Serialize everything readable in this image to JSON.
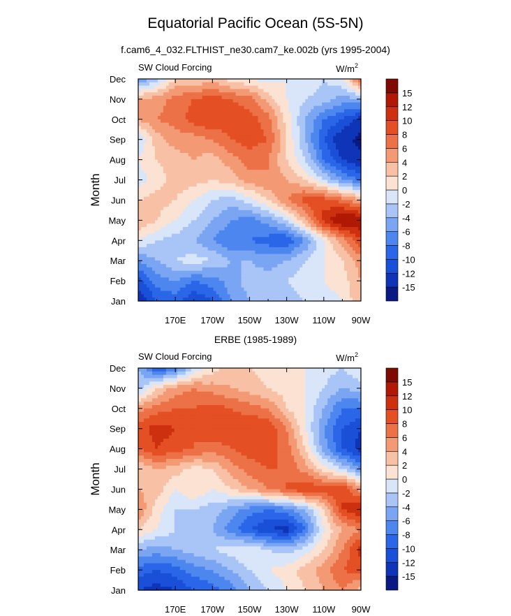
{
  "figure": {
    "title": "Equatorial Pacific Ocean (5S-5N)",
    "subtitle": "f.cam6_4_032.FLTHIST_ne30.cam7_ke.002b (yrs 1995-2004)",
    "panel2_title": "ERBE (1985-1989)"
  },
  "chart_data": [
    {
      "type": "heatmap",
      "title": "SW Cloud Forcing",
      "units_base": "W/m",
      "units_exp": "2",
      "ylabel": "Month",
      "xlabel": "",
      "xlim": [
        150,
        270
      ],
      "x_ticks": [
        170,
        190,
        210,
        230,
        250,
        270
      ],
      "x_tick_labels": [
        "170E",
        "170W",
        "150W",
        "130W",
        "110W",
        "90W"
      ],
      "months": [
        "Jan",
        "Feb",
        "Mar",
        "Apr",
        "May",
        "Jun",
        "Jul",
        "Aug",
        "Sep",
        "Oct",
        "Nov",
        "Dec"
      ],
      "colorbar_levels": [
        -15,
        -12,
        -10,
        -8,
        -6,
        -4,
        -2,
        0,
        2,
        4,
        6,
        8,
        10,
        12,
        15
      ],
      "colorbar_colors": [
        "#0b1a82",
        "#0f34b8",
        "#1a4fd8",
        "#2b66e8",
        "#4d86ef",
        "#7aa5f3",
        "#a9c5f7",
        "#d9e6fa",
        "#fbe2d2",
        "#f8c0a4",
        "#f39a74",
        "#ec7146",
        "#e44f24",
        "#cc300f",
        "#b11905",
        "#7e0a00"
      ],
      "lons": [
        150,
        160,
        170,
        180,
        190,
        200,
        210,
        220,
        230,
        240,
        250,
        260,
        270
      ],
      "values": [
        [
          -14,
          -10,
          -9,
          -12,
          -10,
          -6,
          -4,
          -4,
          -3,
          -2,
          -1,
          0,
          4
        ],
        [
          -11,
          -7,
          -6,
          -8,
          -7,
          -5,
          -3,
          -3,
          -2,
          -1,
          0,
          1,
          4
        ],
        [
          -6,
          -4,
          -2,
          -1,
          -2,
          -4,
          -4,
          -5,
          -4,
          -2,
          0,
          2,
          5
        ],
        [
          0,
          -2,
          -3,
          -4,
          -6,
          -8,
          -8,
          -9,
          -10,
          -6,
          0,
          5,
          10
        ],
        [
          4,
          2,
          0,
          -2,
          -4,
          -6,
          -7,
          -5,
          -2,
          4,
          11,
          15,
          14
        ],
        [
          2,
          3,
          2,
          0,
          -2,
          -3,
          -1,
          2,
          6,
          9,
          9,
          7,
          4
        ],
        [
          -1,
          1,
          3,
          3,
          2,
          3,
          5,
          6,
          4,
          2,
          -2,
          -6,
          -8
        ],
        [
          0,
          2,
          3,
          4,
          3,
          5,
          7,
          6,
          2,
          -2,
          -8,
          -12,
          -14
        ],
        [
          -2,
          3,
          5,
          5,
          6,
          8,
          9,
          8,
          2,
          -4,
          -10,
          -14,
          -16
        ],
        [
          4,
          6,
          7,
          9,
          10,
          9,
          9,
          7,
          1,
          -4,
          -8,
          -10,
          -13
        ],
        [
          4,
          5,
          7,
          8,
          9,
          8,
          7,
          3,
          0,
          -2,
          -3,
          -5,
          -4
        ],
        [
          -6,
          -3,
          2,
          2,
          3,
          1,
          0,
          -1,
          0,
          0,
          -2,
          0,
          8
        ]
      ]
    },
    {
      "type": "heatmap",
      "title": "SW Cloud Forcing",
      "units_base": "W/m",
      "units_exp": "2",
      "ylabel": "Month",
      "xlabel": "",
      "xlim": [
        150,
        270
      ],
      "x_ticks": [
        170,
        190,
        210,
        230,
        250,
        270
      ],
      "x_tick_labels": [
        "170E",
        "170W",
        "150W",
        "130W",
        "110W",
        "90W"
      ],
      "months": [
        "Jan",
        "Feb",
        "Mar",
        "Apr",
        "May",
        "Jun",
        "Jul",
        "Aug",
        "Sep",
        "Oct",
        "Nov",
        "Dec"
      ],
      "colorbar_levels": [
        -15,
        -12,
        -10,
        -8,
        -6,
        -4,
        -2,
        0,
        2,
        4,
        6,
        8,
        10,
        12,
        15
      ],
      "colorbar_colors": [
        "#0b1a82",
        "#0f34b8",
        "#1a4fd8",
        "#2b66e8",
        "#4d86ef",
        "#7aa5f3",
        "#a9c5f7",
        "#d9e6fa",
        "#fbe2d2",
        "#f8c0a4",
        "#f39a74",
        "#ec7146",
        "#e44f24",
        "#cc300f",
        "#b11905",
        "#7e0a00"
      ],
      "lons": [
        150,
        160,
        170,
        180,
        190,
        200,
        210,
        220,
        230,
        240,
        250,
        260,
        270
      ],
      "values": [
        [
          -12,
          -13,
          -12,
          -10,
          -9,
          -7,
          -4,
          -2,
          0,
          2,
          4,
          6,
          3
        ],
        [
          -9,
          -10,
          -9,
          -7,
          -6,
          -4,
          -2,
          0,
          1,
          3,
          5,
          8,
          9
        ],
        [
          -4,
          -5,
          -4,
          -3,
          -2,
          -1,
          0,
          -2,
          -3,
          -1,
          2,
          6,
          11
        ],
        [
          2,
          0,
          -2,
          -3,
          -4,
          -7,
          -10,
          -12,
          -13,
          -8,
          0,
          4,
          6
        ],
        [
          6,
          1,
          -2,
          -2,
          -3,
          -5,
          -7,
          -8,
          -7,
          -4,
          2,
          10,
          12
        ],
        [
          4,
          3,
          0,
          2,
          0,
          2,
          4,
          6,
          8,
          10,
          9,
          10,
          5
        ],
        [
          2,
          4,
          3,
          1,
          2,
          5,
          7,
          8,
          8,
          5,
          1,
          -2,
          -6
        ],
        [
          8,
          10,
          9,
          8,
          7,
          8,
          9,
          9,
          7,
          2,
          -5,
          -10,
          -13
        ],
        [
          9,
          11,
          10,
          8,
          10,
          9,
          10,
          10,
          6,
          0,
          -6,
          -10,
          -12
        ],
        [
          5,
          7,
          8,
          8,
          9,
          8,
          7,
          6,
          2,
          0,
          -4,
          -8,
          -8
        ],
        [
          -3,
          2,
          5,
          6,
          5,
          4,
          3,
          2,
          1,
          0,
          -2,
          -4,
          -3
        ],
        [
          -4,
          -10,
          -8,
          -2,
          1,
          3,
          2,
          1,
          0,
          0,
          -1,
          -2,
          0
        ]
      ]
    }
  ]
}
